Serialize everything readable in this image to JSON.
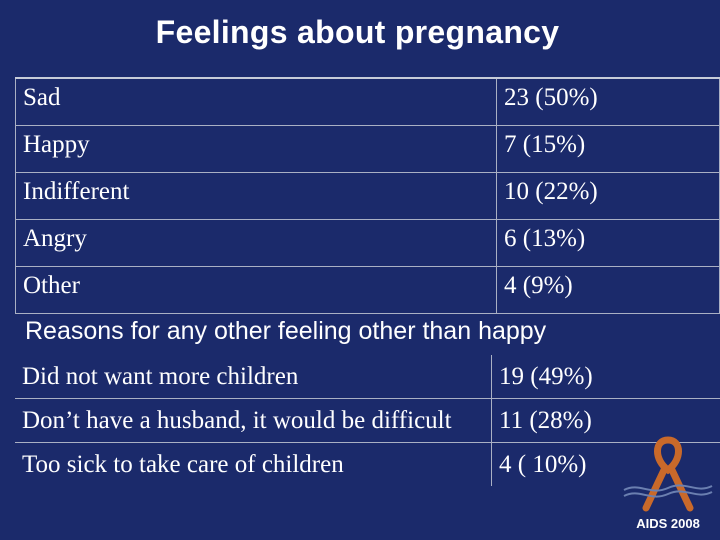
{
  "title": "Feelings about pregnancy",
  "feelings": [
    {
      "label": "Sad",
      "value": "23 (50%)"
    },
    {
      "label": "Happy",
      "value": "7 (15%)"
    },
    {
      "label": "Indifferent",
      "value": "10 (22%)"
    },
    {
      "label": "Angry",
      "value": "6 (13%)"
    },
    {
      "label": "Other",
      "value": "4 (9%)"
    }
  ],
  "reasons_heading": "Reasons for any other feeling other than happy",
  "reasons": [
    {
      "label": "Did not want more children",
      "value": "19 (49%)"
    },
    {
      "label": "Don’t have a husband, it would be difficult",
      "value": "11 (28%)"
    },
    {
      "label": "Too sick to take care of children",
      "value": "4 ( 10%)"
    }
  ],
  "logo": {
    "text": "AIDS 2008",
    "icon": "aids-ribbon-icon"
  },
  "colors": {
    "background": "#1b2a6b",
    "ribbon": "#c9692a"
  }
}
